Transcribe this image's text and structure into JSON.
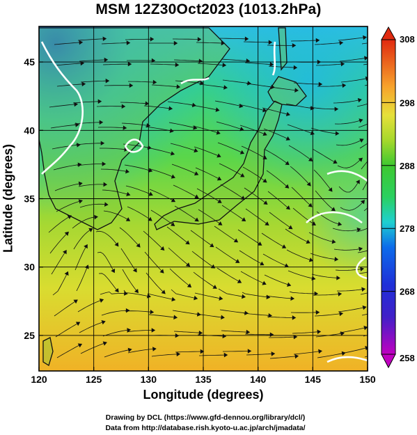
{
  "title": "MSM 12Z30Oct2023 (1013.2hPa)",
  "map": {
    "xlabel": "Longitude (degrees)",
    "ylabel": "Latitude  (degrees)",
    "lon_range": [
      120,
      150
    ],
    "lat_range": [
      22.4,
      47.6
    ],
    "lon_ticks": [
      "120",
      "125",
      "130",
      "135",
      "140",
      "145",
      "150"
    ],
    "lat_ticks": [
      "25",
      "30",
      "35",
      "40",
      "45"
    ],
    "grid_lines": "every 5 degrees",
    "streamlines": "wind at 1013.2hPa"
  },
  "colorbar": {
    "ticks": [
      "258",
      "268",
      "278",
      "288",
      "298",
      "308"
    ],
    "range": [
      258,
      308
    ],
    "colors": [
      "#c000c0",
      "#1f1fd0",
      "#0d6bea",
      "#1fd0d0",
      "#2ad060",
      "#38c83a",
      "#a6d82c",
      "#e6e03a",
      "#f7a32c",
      "#e8501a",
      "#e02a10"
    ]
  },
  "credit": {
    "line1": "Drawing by DCL (https://www.gfd-dennou.org/library/dcl/)",
    "line2": "Data from http://database.rish.kyoto-u.ac.jp/arch/jmadata/"
  }
}
